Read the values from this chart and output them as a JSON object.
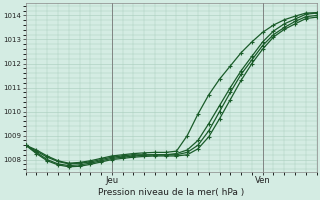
{
  "title": "Pression niveau de la mer( hPa )",
  "xlabel_jeu": "Jeu",
  "xlabel_ven": "Ven",
  "bg_color": "#d4ece3",
  "grid_color": "#a8ccbc",
  "line_color": "#1a5c2a",
  "ylim": [
    1007.5,
    1014.5
  ],
  "yticks": [
    1008,
    1009,
    1010,
    1011,
    1012,
    1013,
    1014
  ],
  "jeu_x": 8,
  "ven_x": 22,
  "xlim": [
    0,
    27
  ],
  "lines": [
    {
      "x": [
        0,
        1,
        2,
        3,
        4,
        5,
        6,
        7,
        8,
        9,
        10,
        11,
        12,
        13,
        14,
        15,
        16,
        17,
        18,
        19,
        20,
        21,
        22,
        23,
        24,
        25,
        26,
        27
      ],
      "y": [
        1008.6,
        1008.35,
        1008.1,
        1007.92,
        1007.82,
        1007.85,
        1007.9,
        1008.0,
        1008.1,
        1008.15,
        1008.2,
        1008.2,
        1008.2,
        1008.2,
        1008.25,
        1008.4,
        1008.8,
        1009.5,
        1010.25,
        1011.0,
        1011.7,
        1012.3,
        1012.9,
        1013.35,
        1013.65,
        1013.85,
        1014.05,
        1014.1
      ]
    },
    {
      "x": [
        0,
        1,
        2,
        3,
        4,
        5,
        6,
        7,
        8,
        9,
        10,
        11,
        12,
        13,
        14,
        15,
        16,
        17,
        18,
        19,
        20,
        21,
        22,
        23,
        24,
        25,
        26,
        27
      ],
      "y": [
        1008.6,
        1008.3,
        1008.0,
        1007.82,
        1007.75,
        1007.78,
        1007.85,
        1007.95,
        1008.05,
        1008.1,
        1008.15,
        1008.18,
        1008.2,
        1008.2,
        1008.2,
        1008.3,
        1008.6,
        1009.2,
        1010.0,
        1010.8,
        1011.55,
        1012.15,
        1012.75,
        1013.2,
        1013.5,
        1013.75,
        1013.95,
        1014.0
      ]
    },
    {
      "x": [
        0,
        1,
        2,
        3,
        4,
        5,
        6,
        7,
        8,
        9,
        10,
        11,
        12,
        13,
        14,
        15,
        16,
        17,
        18,
        19,
        20,
        21,
        22,
        23,
        24,
        25,
        26,
        27
      ],
      "y": [
        1008.6,
        1008.25,
        1007.95,
        1007.78,
        1007.7,
        1007.72,
        1007.8,
        1007.9,
        1008.0,
        1008.05,
        1008.1,
        1008.13,
        1008.15,
        1008.15,
        1008.15,
        1008.2,
        1008.45,
        1008.95,
        1009.7,
        1010.5,
        1011.3,
        1012.0,
        1012.6,
        1013.1,
        1013.42,
        1013.65,
        1013.87,
        1013.93
      ]
    },
    {
      "x": [
        0,
        1,
        2,
        3,
        4,
        5,
        6,
        7,
        8,
        9,
        10,
        11,
        12,
        13,
        14,
        15,
        16,
        17,
        18,
        19,
        20,
        21,
        22,
        23,
        24,
        25,
        26,
        27
      ],
      "y": [
        1008.6,
        1008.4,
        1008.15,
        1007.95,
        1007.85,
        1007.88,
        1007.95,
        1008.05,
        1008.15,
        1008.2,
        1008.25,
        1008.28,
        1008.3,
        1008.3,
        1008.35,
        1009.0,
        1009.9,
        1010.7,
        1011.35,
        1011.9,
        1012.45,
        1012.9,
        1013.3,
        1013.6,
        1013.82,
        1013.97,
        1014.1,
        1014.12
      ]
    }
  ]
}
